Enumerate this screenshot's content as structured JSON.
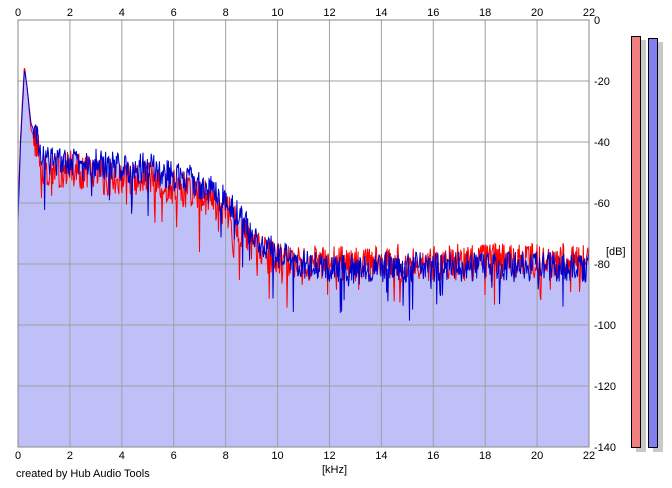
{
  "chart_data": {
    "type": "area",
    "title": "",
    "xlabel": "[kHz]",
    "ylabel": "[dB]",
    "xlim": [
      0,
      22
    ],
    "ylim": [
      -140,
      0
    ],
    "x_ticks": [
      "0",
      "2",
      "4",
      "6",
      "8",
      "10",
      "12",
      "14",
      "16",
      "18",
      "20",
      "22"
    ],
    "y_ticks": [
      "0",
      "-20",
      "-40",
      "-60",
      "-80",
      "-100",
      "-120",
      "-140"
    ],
    "grid": true,
    "series": [
      {
        "color": "#ff0000",
        "envelope": [
          [
            0,
            -62
          ],
          [
            0.1,
            -38
          ],
          [
            0.2,
            -22
          ],
          [
            0.25,
            -15
          ],
          [
            0.35,
            -22
          ],
          [
            0.5,
            -36
          ],
          [
            0.7,
            -40
          ],
          [
            0.9,
            -48
          ],
          [
            1.2,
            -49
          ],
          [
            1.5,
            -50
          ],
          [
            2,
            -48
          ],
          [
            2.5,
            -50
          ],
          [
            3,
            -50
          ],
          [
            3.5,
            -52
          ],
          [
            4,
            -51
          ],
          [
            4.5,
            -53
          ],
          [
            5,
            -52
          ],
          [
            5.5,
            -55
          ],
          [
            6,
            -55
          ],
          [
            6.5,
            -56
          ],
          [
            7,
            -57
          ],
          [
            7.5,
            -59
          ],
          [
            8,
            -62
          ],
          [
            8.5,
            -68
          ],
          [
            9,
            -74
          ],
          [
            9.5,
            -77
          ],
          [
            10,
            -78
          ],
          [
            11,
            -80
          ],
          [
            12,
            -80
          ],
          [
            13,
            -80
          ],
          [
            14,
            -80
          ],
          [
            15,
            -79
          ],
          [
            16,
            -80
          ],
          [
            17,
            -79
          ],
          [
            18,
            -79
          ],
          [
            19,
            -79
          ],
          [
            20,
            -79
          ],
          [
            21,
            -79
          ],
          [
            22,
            -80
          ]
        ],
        "noise": 6,
        "seed": 13
      },
      {
        "color": "#0000cc",
        "envelope": [
          [
            0,
            -66
          ],
          [
            0.1,
            -40
          ],
          [
            0.2,
            -24
          ],
          [
            0.25,
            -16
          ],
          [
            0.35,
            -22
          ],
          [
            0.5,
            -34
          ],
          [
            0.7,
            -38
          ],
          [
            0.9,
            -46
          ],
          [
            1.2,
            -46
          ],
          [
            1.5,
            -47
          ],
          [
            2,
            -46
          ],
          [
            2.5,
            -48
          ],
          [
            3,
            -47
          ],
          [
            3.5,
            -48
          ],
          [
            4,
            -48
          ],
          [
            4.5,
            -49
          ],
          [
            5,
            -48
          ],
          [
            5.5,
            -50
          ],
          [
            6,
            -51
          ],
          [
            6.5,
            -52
          ],
          [
            7,
            -54
          ],
          [
            7.5,
            -56
          ],
          [
            8,
            -59
          ],
          [
            8.5,
            -64
          ],
          [
            9,
            -70
          ],
          [
            9.5,
            -74
          ],
          [
            10,
            -77
          ],
          [
            11,
            -80
          ],
          [
            12,
            -81
          ],
          [
            13,
            -81
          ],
          [
            14,
            -81
          ],
          [
            15,
            -81
          ],
          [
            16,
            -81
          ],
          [
            17,
            -81
          ],
          [
            18,
            -81
          ],
          [
            19,
            -81
          ],
          [
            20,
            -81
          ],
          [
            21,
            -81
          ],
          [
            22,
            -81
          ]
        ],
        "noise": 5,
        "seed": 29
      }
    ],
    "fill_color": "#c0c0f8",
    "meters": [
      {
        "color": "#f08080",
        "level": 0.96
      },
      {
        "color": "#8080f0",
        "level": 0.97
      }
    ]
  },
  "credit": "created by Hub Audio Tools"
}
